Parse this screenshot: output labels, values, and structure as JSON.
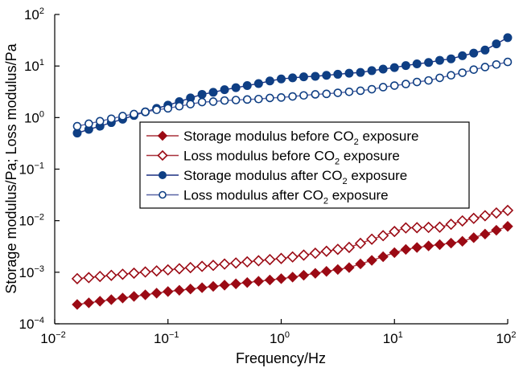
{
  "chart_data": {
    "type": "scatter",
    "title": "",
    "xlabel": "Frequency/Hz",
    "ylabel": "Storage modulus/Pa; Loss modulus/Pa",
    "xscale": "log",
    "yscale": "log",
    "xlim": [
      0.01,
      100
    ],
    "ylim": [
      0.0001,
      100
    ],
    "grid": false,
    "x_ticks": [
      {
        "value": 0.01,
        "base": "10",
        "exp": "−2"
      },
      {
        "value": 0.1,
        "base": "10",
        "exp": "−1"
      },
      {
        "value": 1,
        "base": "10",
        "exp": "0"
      },
      {
        "value": 10,
        "base": "10",
        "exp": "1"
      },
      {
        "value": 100,
        "base": "10",
        "exp": "2"
      }
    ],
    "y_ticks": [
      {
        "value": 0.0001,
        "base": "10",
        "exp": "−4"
      },
      {
        "value": 0.001,
        "base": "10",
        "exp": "−3"
      },
      {
        "value": 0.01,
        "base": "10",
        "exp": "−2"
      },
      {
        "value": 0.1,
        "base": "10",
        "exp": "−1"
      },
      {
        "value": 1,
        "base": "10",
        "exp": "0"
      },
      {
        "value": 10,
        "base": "10",
        "exp": "1"
      },
      {
        "value": 100,
        "base": "10",
        "exp": "2"
      }
    ],
    "legend_position": "center",
    "x": [
      0.0158,
      0.02,
      0.0251,
      0.0316,
      0.0398,
      0.0501,
      0.0631,
      0.0794,
      0.1,
      0.126,
      0.158,
      0.2,
      0.251,
      0.316,
      0.398,
      0.501,
      0.631,
      0.794,
      1.0,
      1.26,
      1.58,
      2.0,
      2.51,
      3.16,
      3.98,
      5.01,
      6.31,
      7.94,
      10.0,
      12.6,
      15.8,
      20.0,
      25.1,
      31.6,
      39.8,
      50.1,
      63.1,
      79.4,
      100
    ],
    "series": [
      {
        "name": "Storage modulus before CO2 exposure",
        "legend_main": "Storage modulus before CO",
        "legend_sub": "2",
        "legend_tail": " exposure",
        "marker": "diamond-filled",
        "color": "#9b0a14",
        "line_color": "#a8303a",
        "values": [
          0.000237,
          0.000255,
          0.000274,
          0.000294,
          0.000316,
          0.00034,
          0.000365,
          0.000393,
          0.000422,
          0.000447,
          0.000473,
          0.000501,
          0.000531,
          0.000562,
          0.000596,
          0.000631,
          0.000668,
          0.000708,
          0.00075,
          0.000804,
          0.000875,
          0.000953,
          0.00104,
          0.00113,
          0.00123,
          0.00145,
          0.0017,
          0.002,
          0.0024,
          0.00277,
          0.00302,
          0.00324,
          0.00343,
          0.00367,
          0.00398,
          0.00468,
          0.0055,
          0.00653,
          0.00776
        ]
      },
      {
        "name": "Loss modulus before CO2 exposure",
        "legend_main": "Loss modulus before CO",
        "legend_sub": "2",
        "legend_tail": " exposure",
        "marker": "diamond-open",
        "color": "#9b0a14",
        "line_color": "#a8303a",
        "values": [
          0.00075,
          0.000787,
          0.000828,
          0.000869,
          0.000914,
          0.000959,
          0.00101,
          0.00106,
          0.00111,
          0.00117,
          0.00123,
          0.0013,
          0.00136,
          0.00144,
          0.00151,
          0.00159,
          0.00167,
          0.00176,
          0.00185,
          0.00198,
          0.00215,
          0.00234,
          0.00255,
          0.00278,
          0.00303,
          0.00363,
          0.00437,
          0.00513,
          0.00617,
          0.00724,
          0.00733,
          0.00741,
          0.0075,
          0.00851,
          0.00989,
          0.0111,
          0.0125,
          0.0141,
          0.0158
        ]
      },
      {
        "name": "Storage modulus after CO2 exposure",
        "legend_main": "Storage modulus after CO",
        "legend_sub": "2",
        "legend_tail": " exposure",
        "marker": "circle-filled",
        "color": "#0f3f84",
        "line_color": "#1a2f80",
        "values": [
          0.5,
          0.59,
          0.68,
          0.8,
          0.93,
          1.1,
          1.29,
          1.51,
          1.74,
          2.04,
          2.4,
          2.82,
          3.09,
          3.47,
          3.8,
          4.17,
          4.57,
          5.13,
          5.62,
          5.89,
          6.17,
          6.31,
          6.61,
          6.92,
          7.24,
          7.5,
          8.13,
          8.71,
          9.33,
          10.2,
          11.0,
          11.7,
          12.9,
          13.8,
          15.8,
          17.8,
          20.4,
          26.9,
          35.5
        ]
      },
      {
        "name": "Loss modulus after CO2 exposure",
        "legend_main": "Loss modulus after CO",
        "legend_sub": "2",
        "legend_tail": " exposure",
        "marker": "circle-open",
        "color": "#0f3f84",
        "line_color": "#5864a4",
        "values": [
          0.68,
          0.76,
          0.85,
          0.95,
          1.07,
          1.17,
          1.29,
          1.41,
          1.51,
          1.66,
          1.82,
          2.0,
          2.04,
          2.14,
          2.19,
          2.24,
          2.29,
          2.4,
          2.45,
          2.57,
          2.69,
          2.82,
          2.88,
          3.02,
          3.16,
          3.31,
          3.55,
          3.89,
          4.17,
          4.47,
          4.9,
          5.25,
          5.89,
          6.61,
          7.41,
          8.51,
          9.55,
          10.7,
          12.0
        ]
      }
    ]
  }
}
